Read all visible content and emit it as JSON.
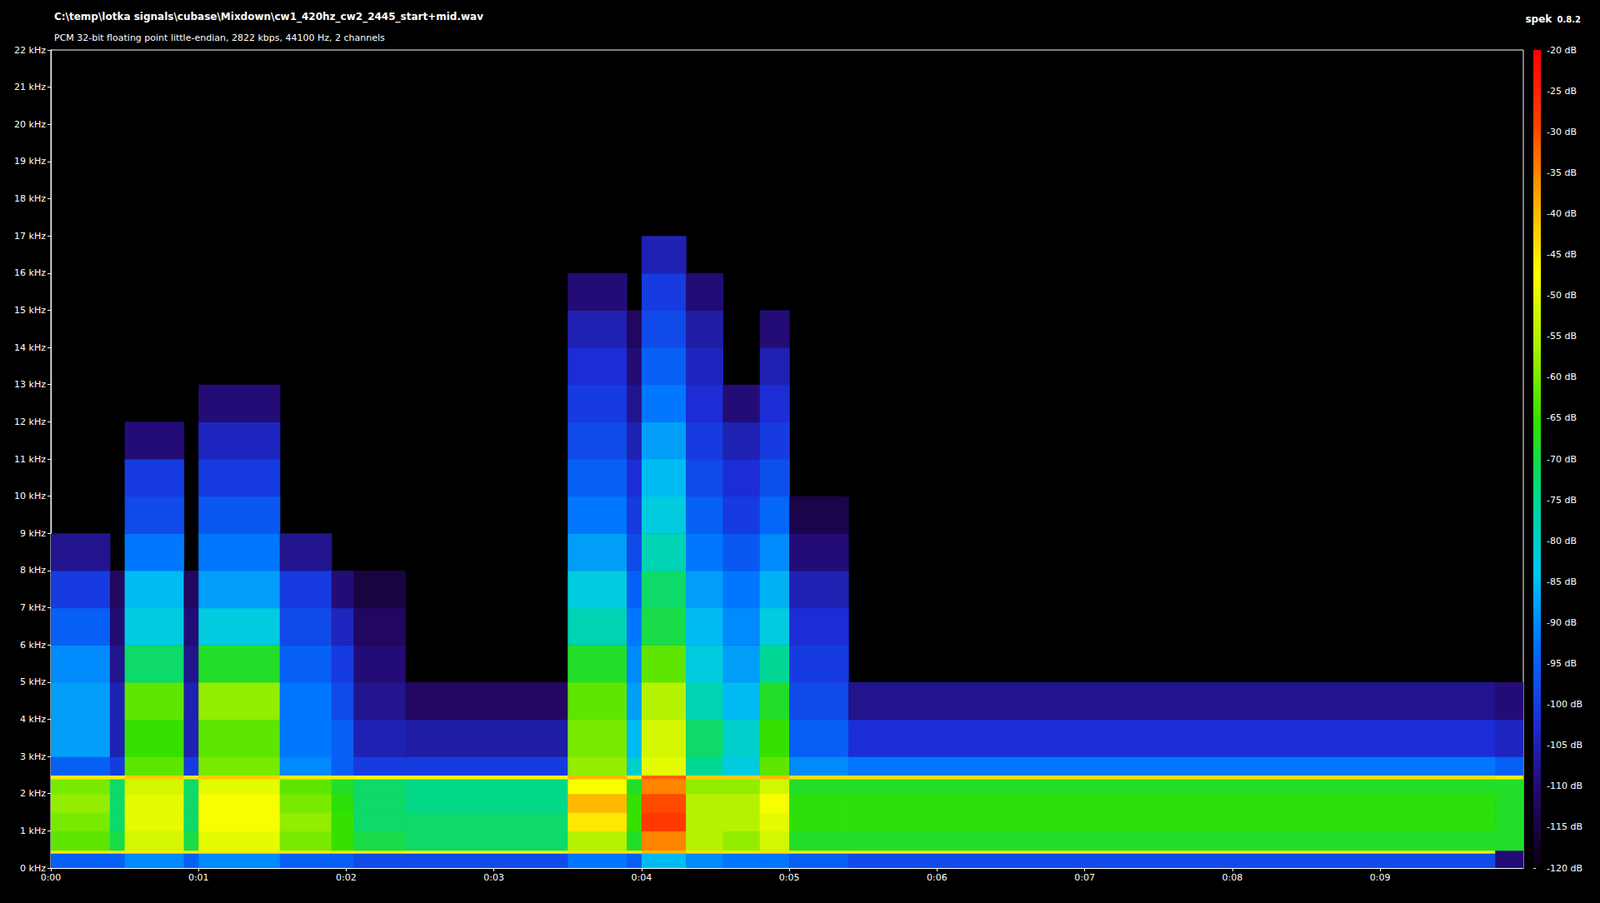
{
  "chart_data": {
    "type": "heatmap",
    "title": "C:\\temp\\lotka signals\\cubase\\Mixdown\\cw1_420hz_cw2_2445_start+mid.wav",
    "subtitle": "PCM 32-bit floating point little-endian, 2822 kbps, 44100 Hz, 2 channels",
    "annotations": [
      "spek",
      "0.8.2"
    ],
    "xlim": [
      0,
      9.97
    ],
    "xticks": [
      {
        "value": 0,
        "label": "0:00"
      },
      {
        "value": 1,
        "label": "0:01"
      },
      {
        "value": 2,
        "label": "0:02"
      },
      {
        "value": 3,
        "label": "0:03"
      },
      {
        "value": 4,
        "label": "0:04"
      },
      {
        "value": 5,
        "label": "0:05"
      },
      {
        "value": 6,
        "label": "0:06"
      },
      {
        "value": 7,
        "label": "0:07"
      },
      {
        "value": 8,
        "label": "0:08"
      },
      {
        "value": 9,
        "label": "0:09"
      }
    ],
    "ylim": [
      0,
      22
    ],
    "yticks": [
      {
        "value": 0,
        "label": "0 kHz"
      },
      {
        "value": 1,
        "label": "1 kHz"
      },
      {
        "value": 2,
        "label": "2 kHz"
      },
      {
        "value": 3,
        "label": "3 kHz"
      },
      {
        "value": 4,
        "label": "4 kHz"
      },
      {
        "value": 5,
        "label": "5 kHz"
      },
      {
        "value": 6,
        "label": "6 kHz"
      },
      {
        "value": 7,
        "label": "7 kHz"
      },
      {
        "value": 8,
        "label": "8 kHz"
      },
      {
        "value": 9,
        "label": "9 kHz"
      },
      {
        "value": 10,
        "label": "10 kHz"
      },
      {
        "value": 11,
        "label": "11 kHz"
      },
      {
        "value": 12,
        "label": "12 kHz"
      },
      {
        "value": 13,
        "label": "13 kHz"
      },
      {
        "value": 14,
        "label": "14 kHz"
      },
      {
        "value": 15,
        "label": "15 kHz"
      },
      {
        "value": 16,
        "label": "16 kHz"
      },
      {
        "value": 17,
        "label": "17 kHz"
      },
      {
        "value": 18,
        "label": "18 kHz"
      },
      {
        "value": 19,
        "label": "19 kHz"
      },
      {
        "value": 20,
        "label": "20 kHz"
      },
      {
        "value": 21,
        "label": "21 kHz"
      },
      {
        "value": 22,
        "label": "22 kHz"
      }
    ],
    "time_edges": [
      0,
      0.4,
      0.5,
      0.9,
      1.0,
      1.55,
      1.9,
      2.05,
      2.4,
      3.5,
      3.9,
      4.0,
      4.3,
      4.55,
      4.8,
      5.0,
      5.4,
      9.78,
      9.97
    ],
    "freq_edges": [
      0,
      0.4,
      0.48,
      1,
      1.5,
      2,
      2.4,
      2.5,
      3,
      4,
      5,
      6,
      7,
      8,
      9,
      10,
      11,
      12,
      13,
      14,
      15,
      16,
      17,
      22
    ],
    "cells": [
      [
        -95,
        -45,
        -62,
        -60,
        -58,
        -60,
        -45,
        -95,
        -88,
        -88,
        -90,
        -95,
        -100,
        -108,
        null,
        null,
        null,
        null,
        null,
        null,
        null,
        null,
        null
      ],
      [
        -95,
        -45,
        -70,
        -72,
        -72,
        -72,
        -45,
        -100,
        -105,
        -105,
        -108,
        -110,
        -112,
        null,
        null,
        null,
        null,
        null,
        null,
        null,
        null,
        null,
        null
      ],
      [
        -90,
        -45,
        -52,
        -50,
        -50,
        -52,
        -42,
        -62,
        -65,
        -62,
        -72,
        -82,
        -85,
        -92,
        -98,
        -100,
        -110,
        null,
        null,
        null,
        null,
        null,
        null
      ],
      [
        -95,
        -45,
        -70,
        -72,
        -72,
        -72,
        -45,
        -100,
        -105,
        -105,
        -108,
        -110,
        -112,
        null,
        null,
        null,
        null,
        null,
        null,
        null,
        null,
        null,
        null
      ],
      [
        -90,
        -45,
        -50,
        -48,
        -48,
        -50,
        -42,
        -60,
        -62,
        -58,
        -68,
        -82,
        -88,
        -92,
        -96,
        -100,
        -104,
        -110,
        null,
        null,
        null,
        null,
        null
      ],
      [
        -95,
        -45,
        -60,
        -58,
        -60,
        -62,
        -45,
        -90,
        -92,
        -92,
        -95,
        -98,
        -100,
        -108,
        null,
        null,
        null,
        null,
        null,
        null,
        null,
        null,
        null
      ],
      [
        -95,
        -45,
        -65,
        -65,
        -66,
        -68,
        -45,
        -95,
        -95,
        -98,
        -100,
        -104,
        -110,
        null,
        null,
        null,
        null,
        null,
        null,
        null,
        null,
        null,
        null
      ],
      [
        -98,
        -45,
        -70,
        -72,
        -72,
        -72,
        -46,
        -100,
        -105,
        -108,
        -110,
        -112,
        -115,
        null,
        null,
        null,
        null,
        null,
        null,
        null,
        null,
        null,
        null
      ],
      [
        -98,
        -46,
        -72,
        -72,
        -74,
        -74,
        -46,
        -100,
        -106,
        -112,
        null,
        null,
        null,
        null,
        null,
        null,
        null,
        null,
        null,
        null,
        null,
        null,
        null
      ],
      [
        -92,
        -44,
        -55,
        -45,
        -40,
        -48,
        -40,
        -58,
        -60,
        -62,
        -68,
        -78,
        -82,
        -88,
        -92,
        -95,
        -98,
        -100,
        -102,
        -105,
        -110,
        null,
        null
      ],
      [
        -95,
        -45,
        -68,
        -65,
        -65,
        -68,
        -45,
        -80,
        -85,
        -88,
        -90,
        -92,
        -95,
        -98,
        -100,
        -102,
        -105,
        -108,
        -110,
        -112,
        null,
        null,
        null
      ],
      [
        -85,
        -40,
        -35,
        -28,
        -30,
        -35,
        -32,
        -50,
        -52,
        -55,
        -62,
        -70,
        -72,
        -78,
        -82,
        -85,
        -88,
        -92,
        -95,
        -98,
        -100,
        -105,
        null
      ],
      [
        -90,
        -44,
        -55,
        -55,
        -55,
        -58,
        -42,
        -75,
        -72,
        -78,
        -82,
        -85,
        -88,
        -92,
        -95,
        -98,
        -100,
        -102,
        -104,
        -106,
        -110,
        null,
        null
      ],
      [
        -92,
        -45,
        -58,
        -55,
        -55,
        -58,
        -42,
        -82,
        -80,
        -85,
        -88,
        -90,
        -92,
        -96,
        -100,
        -102,
        -105,
        -110,
        null,
        null,
        null,
        null,
        null
      ],
      [
        -92,
        -44,
        -52,
        -50,
        -48,
        -52,
        -40,
        -62,
        -65,
        -68,
        -75,
        -82,
        -86,
        -90,
        -94,
        -97,
        -100,
        -102,
        -105,
        -110,
        null,
        null,
        null
      ],
      [
        -95,
        -45,
        -68,
        -66,
        -66,
        -68,
        -44,
        -90,
        -95,
        -98,
        -100,
        -102,
        -105,
        -110,
        -114,
        null,
        null,
        null,
        null,
        null,
        null,
        null,
        null
      ],
      [
        -98,
        -45,
        -68,
        -66,
        -66,
        -68,
        -44,
        -92,
        -102,
        -108,
        null,
        null,
        null,
        null,
        null,
        null,
        null,
        null,
        null,
        null,
        null,
        null,
        null
      ],
      [
        -110,
        -110,
        -68,
        -68,
        -68,
        -68,
        -45,
        -95,
        -104,
        -110,
        null,
        null,
        null,
        null,
        null,
        null,
        null,
        null,
        null,
        null,
        null,
        null,
        null
      ]
    ],
    "colorbar": {
      "range": [
        -120,
        -20
      ],
      "ticks": [
        {
          "value": -120,
          "label": "-120 dB"
        },
        {
          "value": -115,
          "label": "-115 dB"
        },
        {
          "value": -110,
          "label": "-110 dB"
        },
        {
          "value": -105,
          "label": "-105 dB"
        },
        {
          "value": -100,
          "label": "-100 dB"
        },
        {
          "value": -95,
          "label": "-95 dB"
        },
        {
          "value": -90,
          "label": "-90 dB"
        },
        {
          "value": -85,
          "label": "-85 dB"
        },
        {
          "value": -80,
          "label": "-80 dB"
        },
        {
          "value": -75,
          "label": "-75 dB"
        },
        {
          "value": -70,
          "label": "-70 dB"
        },
        {
          "value": -65,
          "label": "-65 dB"
        },
        {
          "value": -60,
          "label": "-60 dB"
        },
        {
          "value": -55,
          "label": "-55 dB"
        },
        {
          "value": -50,
          "label": "-50 dB"
        },
        {
          "value": -45,
          "label": "-45 dB"
        },
        {
          "value": -40,
          "label": "-40 dB"
        },
        {
          "value": -35,
          "label": "-35 dB"
        },
        {
          "value": -30,
          "label": "-30 dB"
        },
        {
          "value": -25,
          "label": "-25 dB"
        },
        {
          "value": -20,
          "label": "-20 dB"
        }
      ]
    }
  }
}
